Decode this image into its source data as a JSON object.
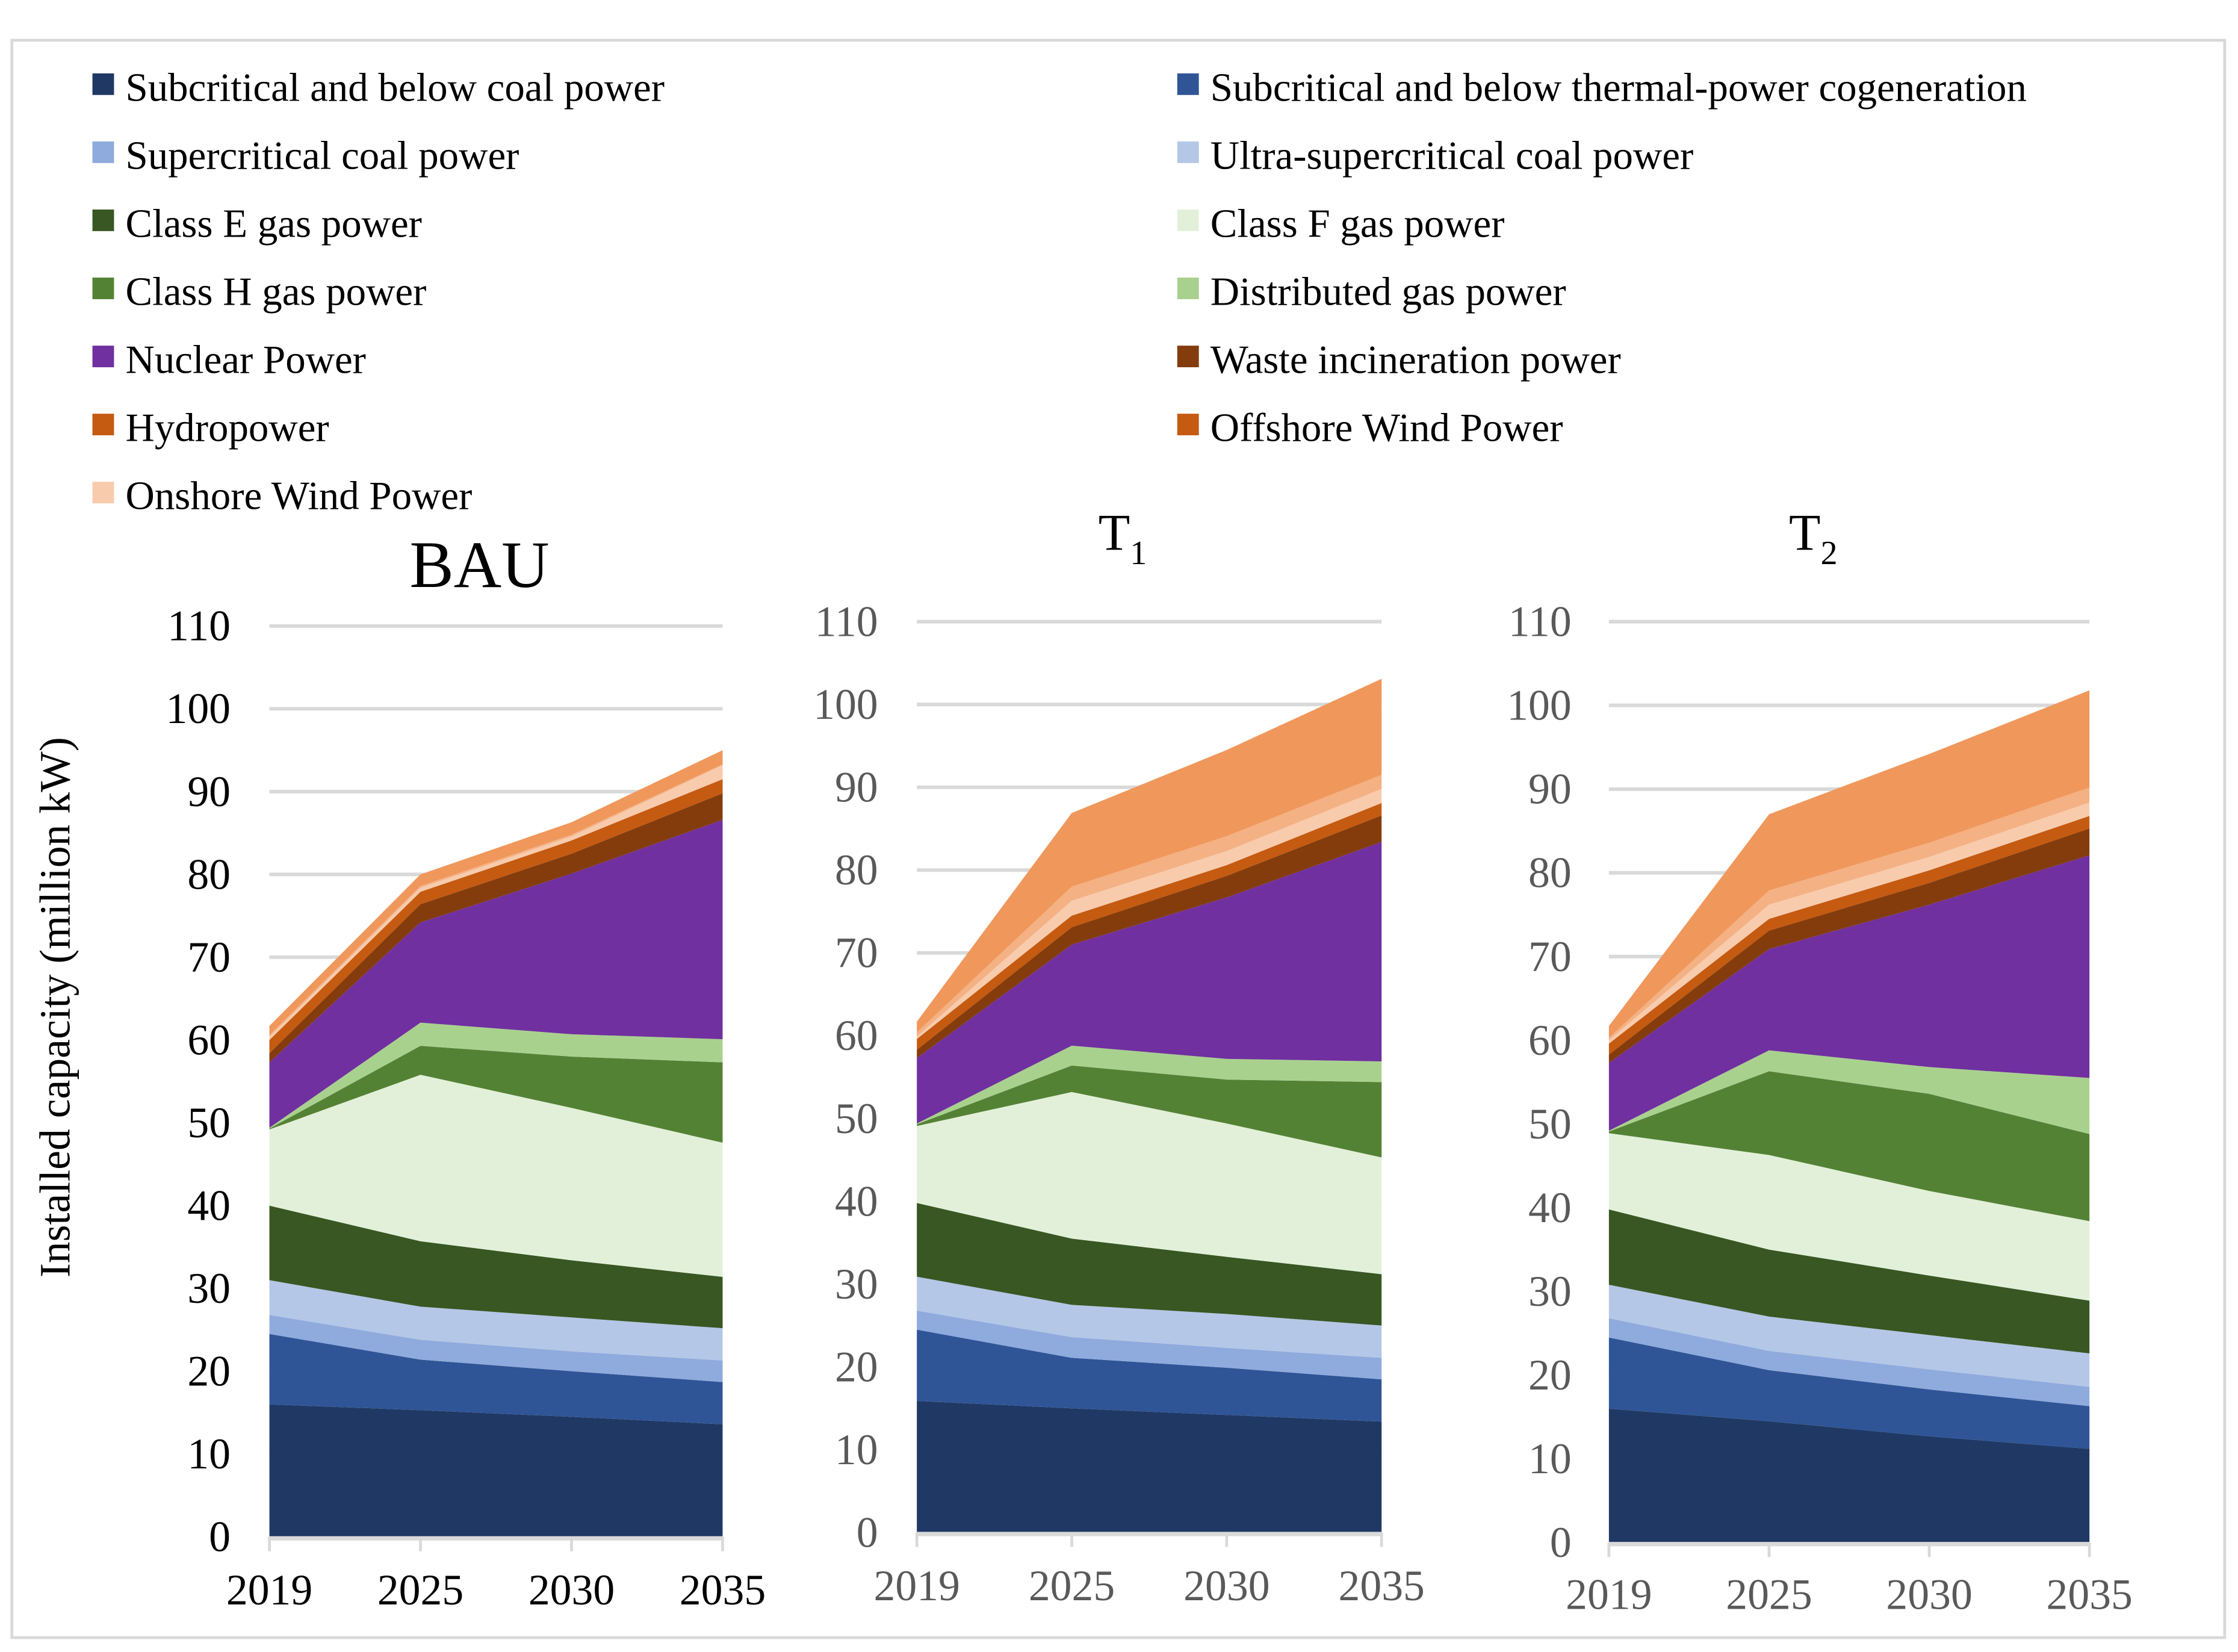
{
  "chart_data": {
    "type": "area",
    "stacked": true,
    "y_axis_label": "Installed capacity (million kW)",
    "y_ticks": [
      "0",
      "10",
      "20",
      "30",
      "40",
      "50",
      "60",
      "70",
      "80",
      "90",
      "100",
      "110"
    ],
    "ylim": [
      0,
      110
    ],
    "grid": true,
    "legend_position": "top",
    "categories": [
      "2019",
      "2025",
      "2030",
      "2035"
    ],
    "legend": [
      {
        "name": "Subcritical and below coal power",
        "color": "#203864"
      },
      {
        "name": "Subcritical and below thermal-power cogeneration",
        "color": "#2F5597"
      },
      {
        "name": "Supercritical coal power",
        "color": "#8FAADC"
      },
      {
        "name": "Ultra-supercritical coal power",
        "color": "#B4C7E7"
      },
      {
        "name": "Class E gas power",
        "color": "#385723"
      },
      {
        "name": "Class F gas power",
        "color": "#E2F0D9"
      },
      {
        "name": "Class H gas power",
        "color": "#548235"
      },
      {
        "name": "Distributed gas power",
        "color": "#A9D18E"
      },
      {
        "name": "Nuclear Power",
        "color": "#7030A0"
      },
      {
        "name": "Waste incineration power",
        "color": "#843C0C"
      },
      {
        "name": "Hydropower",
        "color": "#C55A11"
      },
      {
        "name": "Offshore Wind Power",
        "color": "#C55A11"
      },
      {
        "name": "Onshore Wind Power",
        "color": "#F8CBAD"
      }
    ],
    "stack_layers": [
      {
        "name": "Subcritical and below coal power",
        "color": "#203864"
      },
      {
        "name": "Subcritical and below thermal-power cogeneration",
        "color": "#2F5597"
      },
      {
        "name": "Supercritical coal power",
        "color": "#8FAADC"
      },
      {
        "name": "Ultra-supercritical coal power",
        "color": "#B4C7E7"
      },
      {
        "name": "Class E gas power",
        "color": "#385723"
      },
      {
        "name": "Class F gas power",
        "color": "#E2F0D9"
      },
      {
        "name": "Class H gas power",
        "color": "#548235"
      },
      {
        "name": "Distributed gas power",
        "color": "#A9D18E"
      },
      {
        "name": "Nuclear Power",
        "color": "#7030A0"
      },
      {
        "name": "Waste incineration power",
        "color": "#843C0C"
      },
      {
        "name": "Hydropower",
        "color": "#C55A11"
      },
      {
        "name": "Onshore Wind Power",
        "color": "#F8CBAD"
      },
      {
        "name": "(unlabeled layer)",
        "color": "#F4B183"
      },
      {
        "name": "Offshore Wind Power",
        "color": "#F0975B"
      }
    ],
    "panels": [
      {
        "title": "BAU",
        "title_sub": "",
        "cumulative_tops": [
          [
            16.0,
            15.3,
            14.5,
            13.6
          ],
          [
            24.5,
            21.4,
            20.0,
            18.7
          ],
          [
            26.8,
            23.8,
            22.4,
            21.3
          ],
          [
            31.0,
            27.8,
            26.5,
            25.2
          ],
          [
            40.0,
            35.7,
            33.4,
            31.4
          ],
          [
            49.2,
            55.8,
            51.8,
            47.6
          ],
          [
            49.3,
            59.3,
            58.0,
            57.3
          ],
          [
            49.4,
            62.1,
            60.7,
            60.1
          ],
          [
            57.3,
            74.2,
            80.1,
            86.6
          ],
          [
            58.4,
            76.4,
            82.5,
            89.8
          ],
          [
            60.0,
            77.9,
            84.1,
            91.5
          ],
          [
            60.4,
            78.4,
            84.6,
            93.2
          ],
          [
            60.6,
            78.6,
            84.8,
            93.3
          ],
          [
            61.7,
            80.0,
            86.3,
            95.0
          ]
        ]
      },
      {
        "title": "T",
        "title_sub": "1",
        "cumulative_tops": [
          [
            15.9,
            15.0,
            14.2,
            13.4
          ],
          [
            24.5,
            21.1,
            19.9,
            18.5
          ],
          [
            26.8,
            23.6,
            22.3,
            21.1
          ],
          [
            30.9,
            27.5,
            26.4,
            25.0
          ],
          [
            39.8,
            35.5,
            33.3,
            31.2
          ],
          [
            49.1,
            53.2,
            49.4,
            45.3
          ],
          [
            49.3,
            56.4,
            54.7,
            54.4
          ],
          [
            49.4,
            58.8,
            57.2,
            56.9
          ],
          [
            57.3,
            71.0,
            76.7,
            83.4
          ],
          [
            58.3,
            73.1,
            79.3,
            86.6
          ],
          [
            59.6,
            74.5,
            80.6,
            88.1
          ],
          [
            59.9,
            76.3,
            82.3,
            89.8
          ],
          [
            60.4,
            78.0,
            84.1,
            91.5
          ],
          [
            61.7,
            86.9,
            94.5,
            103.1
          ]
        ]
      },
      {
        "title": "T",
        "title_sub": "2",
        "cumulative_tops": [
          [
            16.0,
            14.5,
            12.7,
            11.2
          ],
          [
            24.5,
            20.6,
            18.3,
            16.3
          ],
          [
            26.8,
            22.9,
            20.7,
            18.6
          ],
          [
            30.8,
            27.0,
            24.8,
            22.6
          ],
          [
            39.8,
            35.0,
            31.9,
            28.9
          ],
          [
            48.9,
            46.3,
            42.0,
            38.4
          ],
          [
            49.1,
            56.3,
            53.6,
            48.8
          ],
          [
            49.2,
            58.8,
            56.8,
            55.5
          ],
          [
            57.3,
            70.9,
            76.2,
            82.1
          ],
          [
            58.3,
            73.1,
            78.8,
            85.3
          ],
          [
            59.6,
            74.5,
            80.3,
            86.8
          ],
          [
            60.0,
            76.2,
            81.9,
            88.4
          ],
          [
            60.3,
            77.9,
            83.6,
            90.2
          ],
          [
            61.7,
            87.0,
            94.2,
            101.8
          ]
        ]
      }
    ]
  }
}
